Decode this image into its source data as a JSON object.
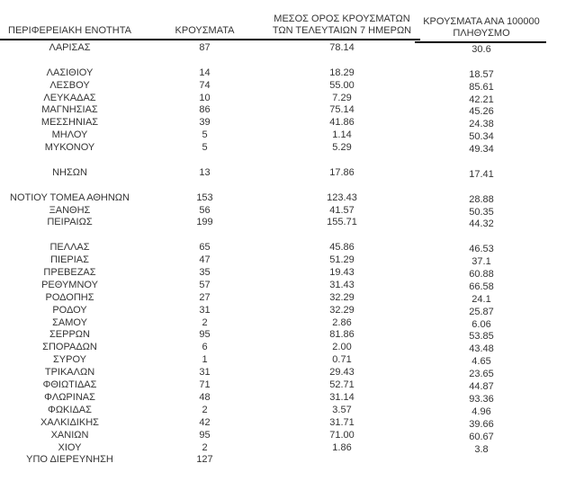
{
  "table": {
    "headers": {
      "region": "ΠΕΡΙΦΕΡΕΙΑΚΗ ΕΝΟΤΗΤΑ",
      "cases": "ΚΡΟΥΣΜΑΤΑ",
      "avg7_line1": "ΜΕΣΟΣ ΟΡΟΣ ΚΡΟΥΣΜΑΤΩΝ",
      "avg7_line2": "ΤΩΝ ΤΕΛΕΥΤΑΙΩΝ 7 ΗΜΕΡΩΝ",
      "per100k_line1": "ΚΡΟΥΣΜΑΤΑ ΑΝΑ 100000",
      "per100k_line2": "ΠΛΗΘΥΣΜΟ"
    },
    "groups": [
      [
        {
          "region": "ΛΑΡΙΣΑΣ",
          "cases": "87",
          "avg_7day": "78.14",
          "per_100k": "30.6"
        }
      ],
      [
        {
          "region": "ΛΑΣΙΘΙΟΥ",
          "cases": "14",
          "avg_7day": "18.29",
          "per_100k": "18.57"
        },
        {
          "region": "ΛΕΣΒΟΥ",
          "cases": "74",
          "avg_7day": "55.00",
          "per_100k": "85.61"
        },
        {
          "region": "ΛΕΥΚΑΔΑΣ",
          "cases": "10",
          "avg_7day": "7.29",
          "per_100k": "42.21"
        },
        {
          "region": "ΜΑΓΝΗΣΙΑΣ",
          "cases": "86",
          "avg_7day": "75.14",
          "per_100k": "45.26"
        },
        {
          "region": "ΜΕΣΣΗΝΙΑΣ",
          "cases": "39",
          "avg_7day": "41.86",
          "per_100k": "24.38"
        },
        {
          "region": "ΜΗΛΟΥ",
          "cases": "5",
          "avg_7day": "1.14",
          "per_100k": "50.34"
        },
        {
          "region": "ΜΥΚΟΝΟΥ",
          "cases": "5",
          "avg_7day": "5.29",
          "per_100k": "49.34"
        }
      ],
      [
        {
          "region": "ΝΗΣΩΝ",
          "cases": "13",
          "avg_7day": "17.86",
          "per_100k": "17.41"
        }
      ],
      [
        {
          "region": "ΝΟΤΙΟΥ ΤΟΜΕΑ ΑΘΗΝΩΝ",
          "cases": "153",
          "avg_7day": "123.43",
          "per_100k": "28.88"
        },
        {
          "region": "ΞΑΝΘΗΣ",
          "cases": "56",
          "avg_7day": "41.57",
          "per_100k": "50.35"
        },
        {
          "region": "ΠΕΙΡΑΙΩΣ",
          "cases": "199",
          "avg_7day": "155.71",
          "per_100k": "44.32"
        }
      ],
      [
        {
          "region": "ΠΕΛΛΑΣ",
          "cases": "65",
          "avg_7day": "45.86",
          "per_100k": "46.53"
        },
        {
          "region": "ΠΙΕΡΙΑΣ",
          "cases": "47",
          "avg_7day": "51.29",
          "per_100k": "37.1"
        },
        {
          "region": "ΠΡΕΒΕΖΑΣ",
          "cases": "35",
          "avg_7day": "19.43",
          "per_100k": "60.88"
        },
        {
          "region": "ΡΕΘΥΜΝΟΥ",
          "cases": "57",
          "avg_7day": "31.43",
          "per_100k": "66.58"
        },
        {
          "region": "ΡΟΔΟΠΗΣ",
          "cases": "27",
          "avg_7day": "32.29",
          "per_100k": "24.1"
        },
        {
          "region": "ΡΟΔΟΥ",
          "cases": "31",
          "avg_7day": "32.29",
          "per_100k": "25.87"
        },
        {
          "region": "ΣΑΜΟΥ",
          "cases": "2",
          "avg_7day": "2.86",
          "per_100k": "6.06"
        },
        {
          "region": "ΣΕΡΡΩΝ",
          "cases": "95",
          "avg_7day": "81.86",
          "per_100k": "53.85"
        },
        {
          "region": "ΣΠΟΡΑΔΩΝ",
          "cases": "6",
          "avg_7day": "2.00",
          "per_100k": "43.48"
        },
        {
          "region": "ΣΥΡΟΥ",
          "cases": "1",
          "avg_7day": "0.71",
          "per_100k": "4.65"
        },
        {
          "region": "ΤΡΙΚΑΛΩΝ",
          "cases": "31",
          "avg_7day": "29.43",
          "per_100k": "23.65"
        },
        {
          "region": "ΦΘΙΩΤΙΔΑΣ",
          "cases": "71",
          "avg_7day": "52.71",
          "per_100k": "44.87"
        },
        {
          "region": "ΦΛΩΡΙΝΑΣ",
          "cases": "48",
          "avg_7day": "31.14",
          "per_100k": "93.36"
        },
        {
          "region": "ΦΩΚΙΔΑΣ",
          "cases": "2",
          "avg_7day": "3.57",
          "per_100k": "4.96"
        },
        {
          "region": "ΧΑΛΚΙΔΙΚΗΣ",
          "cases": "42",
          "avg_7day": "31.71",
          "per_100k": "39.66"
        },
        {
          "region": "ΧΑΝΙΩΝ",
          "cases": "95",
          "avg_7day": "71.00",
          "per_100k": "60.67"
        },
        {
          "region": "ΧΙΟΥ",
          "cases": "2",
          "avg_7day": "1.86",
          "per_100k": "3.8"
        },
        {
          "region": "ΥΠΟ ΔΙΕΡΕΥΝΗΣΗ",
          "cases": "127",
          "avg_7day": "",
          "per_100k": ""
        }
      ]
    ],
    "colors": {
      "text": "#333333",
      "rule": "#000000",
      "background": "#ffffff"
    }
  }
}
